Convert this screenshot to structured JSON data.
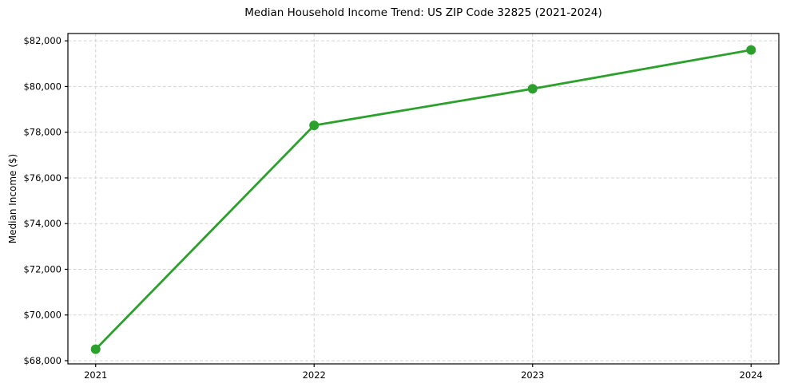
{
  "figure": {
    "background": "#ffffff"
  },
  "chart_data": {
    "type": "line",
    "title": "Median Household Income Trend: US ZIP Code 32825 (2021-2024)",
    "xlabel": "",
    "ylabel": "Median Income ($)",
    "categories": [
      2021,
      2022,
      2023,
      2024
    ],
    "xtick_labels": [
      "2021",
      "2022",
      "2023",
      "2024"
    ],
    "values": [
      68500,
      78300,
      79900,
      81600
    ],
    "yticks": [
      68000,
      70000,
      72000,
      74000,
      76000,
      78000,
      80000,
      82000
    ],
    "ytick_labels": [
      "$68,000",
      "$70,000",
      "$72,000",
      "$74,000",
      "$76,000",
      "$78,000",
      "$80,000",
      "$82,000"
    ],
    "ylim": [
      67860,
      82320
    ],
    "grid": true,
    "grid_style": "dashed",
    "legend": false,
    "marker": "circle",
    "colors": {
      "line": "#2ca02c",
      "marker": "#2ca02c",
      "grid": "#d3d3d3",
      "axis": "#000000",
      "text": "#000000"
    }
  }
}
